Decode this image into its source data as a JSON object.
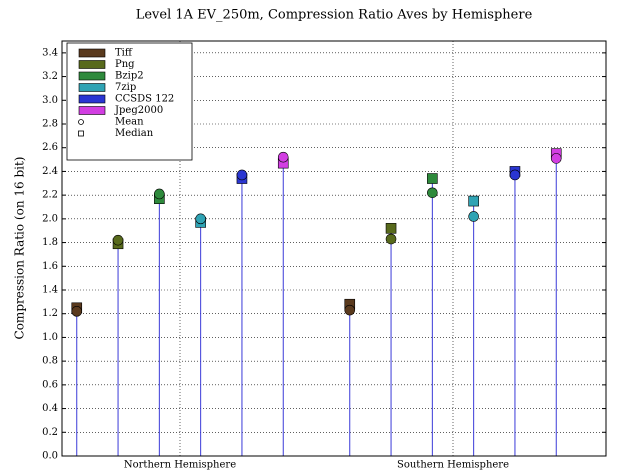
{
  "chart_data": {
    "type": "stem",
    "title": "Level 1A EV_250m, Compression Ratio Aves by Hemisphere",
    "y_label": "Compression Ratio (on 16 bit)",
    "categories": [
      "Northern Hemisphere",
      "Southern Hemisphere"
    ],
    "series": [
      {
        "name": "Tiff",
        "color": "#5a3a1e",
        "mean": [
          1.22,
          1.23
        ],
        "median": [
          1.25,
          1.28
        ]
      },
      {
        "name": "Png",
        "color": "#586a1c",
        "mean": [
          1.82,
          1.83
        ],
        "median": [
          1.79,
          1.92
        ]
      },
      {
        "name": "Bzip2",
        "color": "#2e8a3c",
        "mean": [
          2.21,
          2.22
        ],
        "median": [
          2.17,
          2.34
        ]
      },
      {
        "name": "7zip",
        "color": "#2fa3b4",
        "mean": [
          2.0,
          2.02
        ],
        "median": [
          1.97,
          2.15
        ]
      },
      {
        "name": "CCSDS 122",
        "color": "#2a36d2",
        "mean": [
          2.37,
          2.37
        ],
        "median": [
          2.34,
          2.4
        ]
      },
      {
        "name": "Jpeg2000",
        "color": "#d23ee2",
        "mean": [
          2.52,
          2.51
        ],
        "median": [
          2.47,
          2.55
        ]
      }
    ],
    "marker_legend": {
      "mean": "Mean",
      "median": "Median"
    },
    "stem_color": "#3a3ad8",
    "ylim": [
      0,
      3.5
    ],
    "yticks": [
      {
        "value": 0,
        "label": "0.0"
      },
      0.2,
      0.4,
      0.6,
      0.8,
      {
        "value": 1,
        "label": "1.0"
      },
      1.2,
      1.4,
      1.6,
      1.8,
      {
        "value": 2,
        "label": "2.0"
      },
      2.2,
      2.4,
      2.6,
      2.8,
      {
        "value": 3,
        "label": "3.0"
      },
      3.2,
      3.4
    ],
    "grid": true,
    "legend": "upper left"
  }
}
